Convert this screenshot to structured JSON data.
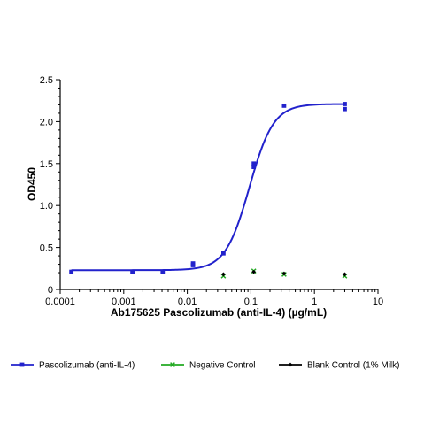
{
  "chart_data": {
    "type": "scatter",
    "xlabel": "Ab175625 Pascolizumab (anti-IL-4) (µg/mL)",
    "ylabel": "OD450",
    "x_scale": "log",
    "xlim": [
      0.0001,
      10
    ],
    "ylim": [
      0,
      2.5
    ],
    "x_ticks": [
      "0.0001",
      "0.001",
      "0.01",
      "0.1",
      "1",
      "10"
    ],
    "y_ticks": [
      "0",
      "0.5",
      "1.0",
      "1.5",
      "2.0",
      "2.5"
    ],
    "grid": false,
    "legend_position": "bottom",
    "series": [
      {
        "name": "Pascolizumab (anti-IL-4)",
        "color": "#2222cc",
        "marker": "square",
        "fit_curve": "sigmoid",
        "fit": {
          "bottom": 0.23,
          "top": 2.21,
          "ec50": 0.095,
          "hill": 2.3
        },
        "points": [
          {
            "x": 0.00015,
            "y": 0.21
          },
          {
            "x": 0.00137,
            "y": 0.21
          },
          {
            "x": 0.0041,
            "y": 0.21
          },
          {
            "x": 0.0123,
            "y": 0.29
          },
          {
            "x": 0.0123,
            "y": 0.31
          },
          {
            "x": 0.037,
            "y": 0.43
          },
          {
            "x": 0.111,
            "y": 1.46
          },
          {
            "x": 0.111,
            "y": 1.5
          },
          {
            "x": 0.333,
            "y": 2.19
          },
          {
            "x": 3.0,
            "y": 2.15
          },
          {
            "x": 3.0,
            "y": 2.21
          }
        ]
      },
      {
        "name": "Negative Control",
        "color": "#22aa22",
        "marker": "x",
        "points": [
          {
            "x": 0.037,
            "y": 0.16
          },
          {
            "x": 0.111,
            "y": 0.22
          },
          {
            "x": 0.333,
            "y": 0.18
          },
          {
            "x": 3.0,
            "y": 0.16
          }
        ]
      },
      {
        "name": "Blank Control (1% Milk)",
        "color": "#000000",
        "marker": "diamond",
        "points": [
          {
            "x": 0.037,
            "y": 0.18
          },
          {
            "x": 0.111,
            "y": 0.21
          },
          {
            "x": 0.333,
            "y": 0.19
          },
          {
            "x": 3.0,
            "y": 0.18
          }
        ]
      }
    ]
  }
}
